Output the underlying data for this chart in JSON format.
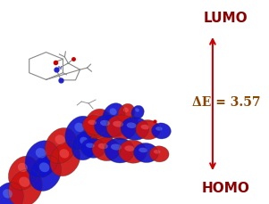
{
  "background_color": "#ffffff",
  "lumo_label": "LUMO",
  "homo_label": "HOMO",
  "delta_e_label": "ΔE = 3.57",
  "arrow_color": "#cc0000",
  "label_color": "#8B0000",
  "delta_e_color": "#8B4500",
  "label_fontsize": 11,
  "delta_e_fontsize": 10,
  "red_color": "#cc1111",
  "blue_color": "#1111cc",
  "red_light": "#ff6666",
  "blue_light": "#6688ff"
}
